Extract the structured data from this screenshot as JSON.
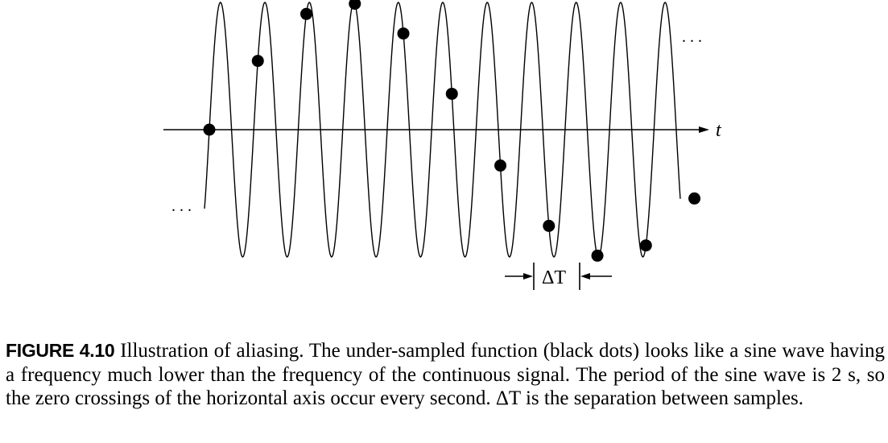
{
  "figure": {
    "axis_label": "t",
    "ellipsis_left": ". . .",
    "ellipsis_right": ". . .",
    "delta_label": "ΔT"
  },
  "caption": {
    "label": "FIGURE 4.10",
    "p1": " Illustration of aliasing. The under-sampled function (black dots) looks like a sine wave having a frequency much lower than the frequency of the continuous signal. The period of the sine wave is 2 s, so the zero crossings of the horizontal axis occur every second. ",
    "delta": "ΔT",
    "p2": " is the separation between samples."
  },
  "colors": {
    "ink": "#000000",
    "background": "#ffffff"
  },
  "signal": {
    "continuous_cycles": 10.7,
    "samples_per_aliased_period": 11,
    "sample_count": 11
  }
}
